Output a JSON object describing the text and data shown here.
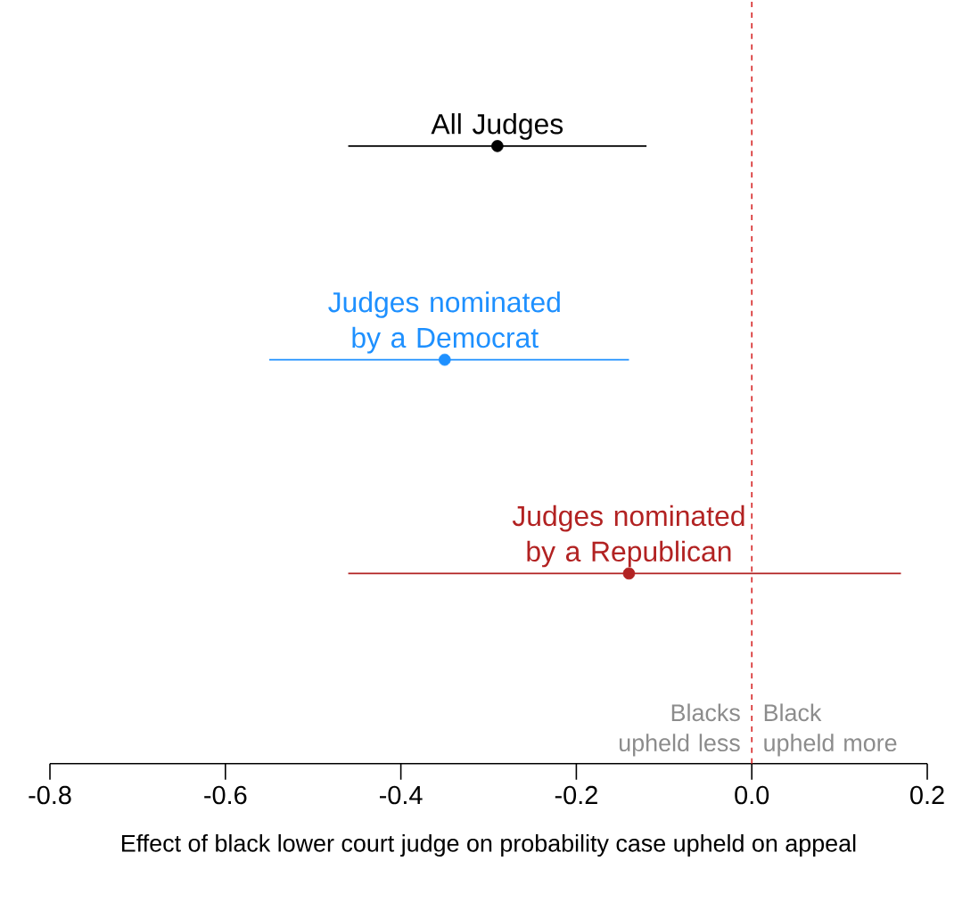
{
  "chart_data": {
    "type": "scatter",
    "orientation": "horizontal",
    "xlabel": "Effect of black lower court judge on probability case upheld on appeal",
    "categories": [
      null,
      null,
      null
    ],
    "series": [
      {
        "name": "All Judges",
        "color": "#000000",
        "values": [
          -0.29,
          null,
          null
        ],
        "errors": [
          [
            -0.46,
            -0.12
          ],
          null,
          null
        ]
      },
      {
        "name": "Judges nominated by a Democrat",
        "color": "#1e90ff",
        "values": [
          null,
          -0.35,
          null
        ],
        "errors": [
          null,
          [
            -0.55,
            -0.14
          ],
          null
        ]
      },
      {
        "name": "Judges nominated by a Republican",
        "color": "#b22222",
        "values": [
          null,
          null,
          -0.14
        ],
        "errors": [
          null,
          null,
          [
            -0.46,
            0.17
          ]
        ]
      }
    ],
    "xlim": [
      -0.8,
      0.2
    ],
    "xticks": [
      -0.8,
      -0.6,
      -0.4,
      -0.2,
      {
        "value": 0,
        "label": "0.0"
      },
      0.2
    ],
    "tick_labels": "x",
    "marker": "circle",
    "ref_lines": [
      {
        "axis": "x",
        "value": 0,
        "color": "#d62728",
        "line_style": "dashed"
      }
    ],
    "annotations": [
      "Blacks upheld less",
      "Black upheld more"
    ]
  }
}
